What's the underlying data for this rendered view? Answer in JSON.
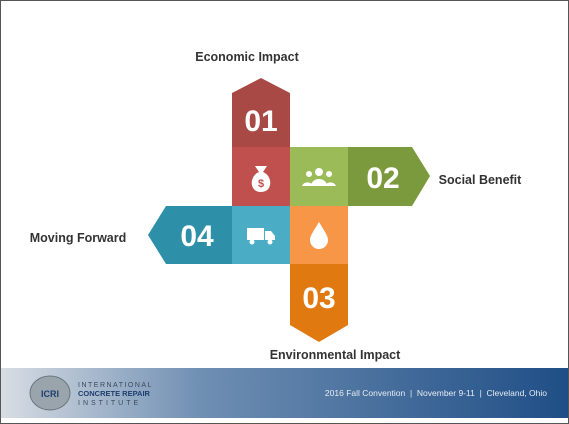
{
  "items": [
    {
      "number": "01",
      "label": "Economic Impact"
    },
    {
      "number": "02",
      "label": "Social Benefit"
    },
    {
      "number": "03",
      "label": "Environmental Impact"
    },
    {
      "number": "04",
      "label": "Moving Forward"
    }
  ],
  "footer": {
    "logo": "ICRI",
    "org_lines": [
      "INTERNATIONAL",
      "CONCRETE REPAIR",
      "INSTITUTE"
    ],
    "event": "2016 Fall Convention  |  November 9-11  |  Cleveland, Ohio"
  }
}
